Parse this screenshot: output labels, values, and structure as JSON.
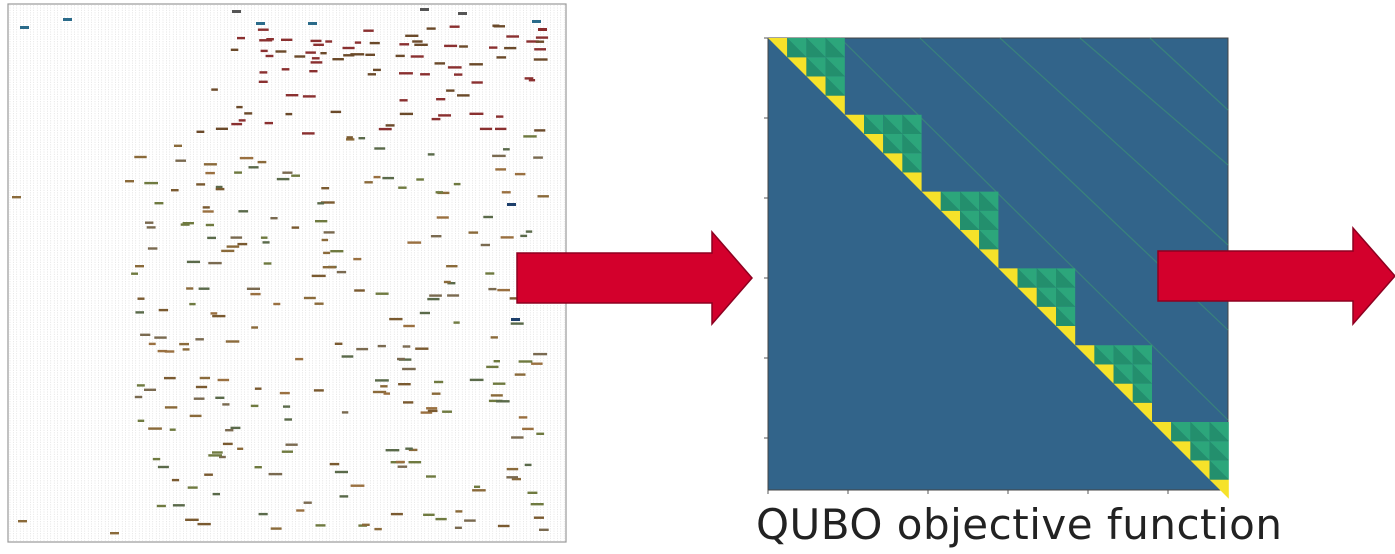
{
  "caption": "QUBO objective function",
  "colors": {
    "matrix_background": "#32648a",
    "diagonal": "#f6e22a",
    "off_diagonal": "#2ca67b",
    "arrow_fill": "#d3002c",
    "arrow_stroke": "#8e0020",
    "schedule_grid": "#cfcfcf"
  },
  "icons": {
    "schedule_panel": "gantt-schedule-plot",
    "matrix_panel": "qubo-heatmap",
    "arrows": "right-arrow"
  }
}
